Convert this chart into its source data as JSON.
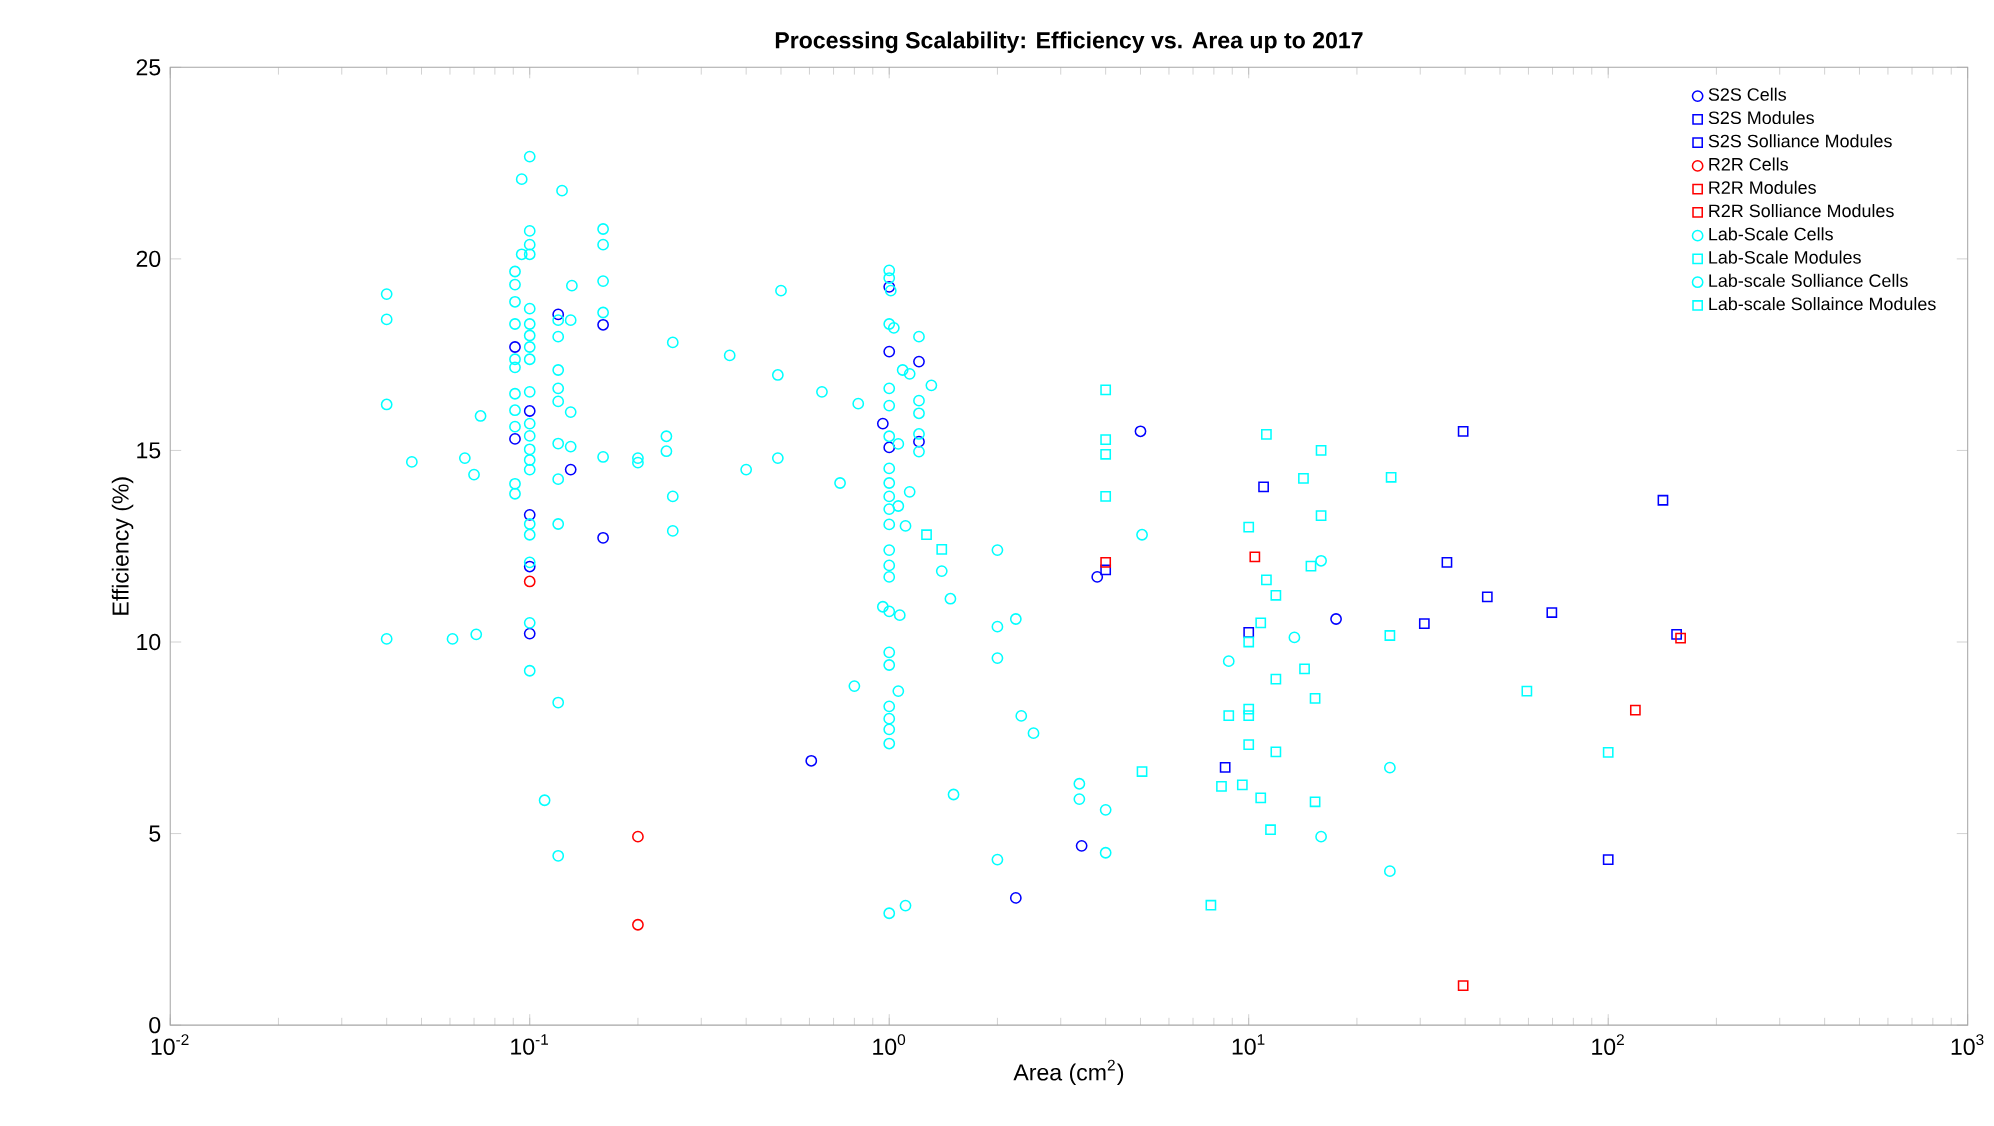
{
  "chart_data": {
    "type": "scatter",
    "title": "Processing Scalability: Efficiency vs. Area up to 2017",
    "xlabel": "Area (cm$^{2}$)",
    "ylabel": "Efficiency (%)",
    "log": "x",
    "grid": false,
    "legend": "top right",
    "xlim": [
      0.01,
      1000
    ],
    "xticks": [
      {
        "value": 0.01,
        "label": "10$^{-2}$"
      },
      {
        "value": 0.1,
        "label": "10$^{-1}$"
      },
      {
        "value": 1,
        "label": "10$^{0}$"
      },
      {
        "value": 10,
        "label": "10$^{1}$"
      },
      {
        "value": 100,
        "label": "10$^{2}$"
      },
      {
        "value": 1000,
        "label": "10$^{3}$"
      }
    ],
    "ylim": [
      0,
      25
    ],
    "yticks": [
      0,
      5,
      10,
      15,
      20,
      25
    ],
    "series": [
      {
        "name": "S2S Cells",
        "color": "#0000ff",
        "marker": "circle",
        "x": [
          0.12,
          0.16,
          0.091,
          0.1,
          0.091,
          0.13,
          0.16,
          0.1,
          0.1,
          0.1,
          1,
          1,
          1.21,
          0.96,
          1,
          1.21,
          0.607,
          5.0,
          3.43,
          2.25,
          3.79,
          17.5
        ],
        "values": [
          18.55,
          18.28,
          17.7,
          16.03,
          15.3,
          14.5,
          12.72,
          13.32,
          11.97,
          10.22,
          19.27,
          17.58,
          17.32,
          15.7,
          15.08,
          15.23,
          6.9,
          15.5,
          4.68,
          3.32,
          11.7,
          10.6
        ]
      },
      {
        "name": "S2S Modules",
        "color": "#0000ff",
        "marker": "square",
        "x": [
          4.0,
          11.0,
          39.5,
          35.6,
          46.1,
          30.8,
          69.7,
          10,
          8.6,
          100
        ],
        "values": [
          11.88,
          14.05,
          15.5,
          12.08,
          11.18,
          10.48,
          10.77,
          10.25,
          6.73,
          4.32
        ]
      },
      {
        "name": "S2S Solliance Modules",
        "color": "#0000ff",
        "marker": "square",
        "x": [
          142,
          155
        ],
        "values": [
          13.7,
          10.2
        ]
      },
      {
        "name": "R2R Cells",
        "color": "#ff0000",
        "marker": "circle",
        "x": [
          0.1,
          0.2,
          0.2
        ],
        "values": [
          11.58,
          4.92,
          2.62
        ]
      },
      {
        "name": "R2R Modules",
        "color": "#ff0000",
        "marker": "square",
        "x": [
          39.5
        ],
        "values": [
          1.03
        ]
      },
      {
        "name": "R2R Solliance Modules",
        "color": "#ff0000",
        "marker": "square",
        "x": [
          4.0,
          10.4,
          159,
          119
        ],
        "values": [
          12.08,
          12.22,
          10.1,
          8.22
        ]
      },
      {
        "name": "Lab-Scale Cells",
        "color": "#00ffff",
        "marker": "circle",
        "x": [
          0.1,
          0.095,
          0.123,
          0.1,
          0.1,
          0.1,
          0.095,
          0.16,
          0.16,
          0.16,
          0.091,
          0.091,
          0.1,
          0.12,
          0.13,
          0.1,
          0.16,
          0.1,
          0.12,
          0.1,
          0.1,
          0.25,
          0.04,
          0.04,
          0.04,
          0.12,
          0.12,
          0.12,
          0.13,
          0.091,
          0.091,
          0.1,
          0.1,
          0.1,
          0.091,
          0.073,
          0.047,
          0.066,
          0.07,
          0.1,
          0.1,
          0.1,
          0.12,
          0.13,
          0.091,
          0.091,
          0.12,
          0.16,
          0.2,
          0.2,
          0.24,
          0.24,
          0.25,
          0.25,
          0.1,
          0.1,
          0.12,
          0.1,
          0.04,
          0.061,
          0.071,
          0.1,
          0.1,
          0.12,
          0.11,
          0.12,
          1,
          1,
          1.01,
          0.5,
          1,
          1.03,
          1.21,
          0.36,
          0.49,
          1.09,
          1.14,
          0.65,
          1.31,
          0.82,
          1,
          1,
          1.21,
          1.21,
          1,
          1.06,
          1.21,
          1.21,
          0.49,
          0.4,
          0.73,
          1,
          1,
          1,
          1,
          1.14,
          1.06,
          1,
          1.11,
          1,
          1,
          1,
          2.0,
          1.4,
          1.48,
          0.96,
          1,
          1.07,
          2.0,
          2.25,
          2.0,
          1,
          1,
          0.8,
          1.06,
          1,
          1,
          1,
          1,
          2.33,
          2.52,
          1.51,
          3.38,
          3.38,
          4.0,
          4.0,
          2.0,
          1,
          1.11,
          5.05,
          15.9,
          13.4,
          8.8,
          24.7,
          15.9,
          24.7
        ],
        "values": [
          22.67,
          22.08,
          21.78,
          20.73,
          20.37,
          20.12,
          20.12,
          20.78,
          20.37,
          19.42,
          19.67,
          18.88,
          18.7,
          18.4,
          18.4,
          18.3,
          18.6,
          18.0,
          17.97,
          17.7,
          17.38,
          17.82,
          19.08,
          18.42,
          16.2,
          17.1,
          16.62,
          16.28,
          16.0,
          16.48,
          16.05,
          16.53,
          15.7,
          15.38,
          15.62,
          15.9,
          14.7,
          14.8,
          14.37,
          15.03,
          14.75,
          14.5,
          15.18,
          15.1,
          14.13,
          13.87,
          14.25,
          14.83,
          14.8,
          14.68,
          15.37,
          14.98,
          13.8,
          12.9,
          13.08,
          12.8,
          13.08,
          12.08,
          10.08,
          10.08,
          10.2,
          10.5,
          9.25,
          8.42,
          5.87,
          4.42,
          19.7,
          19.5,
          19.17,
          19.17,
          18.3,
          18.2,
          17.97,
          17.48,
          16.97,
          17.1,
          17.0,
          16.53,
          16.7,
          16.22,
          16.62,
          16.17,
          16.3,
          15.97,
          15.37,
          15.17,
          15.43,
          14.97,
          14.8,
          14.5,
          14.15,
          14.53,
          14.15,
          13.8,
          13.47,
          13.92,
          13.55,
          13.07,
          13.03,
          12.4,
          12.0,
          11.7,
          12.4,
          11.85,
          11.13,
          10.92,
          10.8,
          10.7,
          10.4,
          10.6,
          9.58,
          9.73,
          9.4,
          8.85,
          8.72,
          8.32,
          8.0,
          7.72,
          7.35,
          8.07,
          7.62,
          6.02,
          6.3,
          5.9,
          5.62,
          4.5,
          4.32,
          2.92,
          3.12,
          12.8,
          12.12,
          10.12,
          9.5,
          6.72,
          4.92,
          4.02
        ]
      },
      {
        "name": "Lab-Scale Modules",
        "color": "#00ffff",
        "marker": "square",
        "x": [
          1.27,
          1.4,
          4.0,
          4.0,
          5.05,
          11.2,
          14.2,
          24.9,
          10,
          14.9,
          11.2,
          11.9,
          10.8,
          10,
          24.7,
          14.3,
          11.9,
          15.3,
          8.8,
          10,
          10,
          10,
          11.9,
          8.4,
          9.6,
          10.8,
          15.3,
          11.5,
          7.85,
          59.4,
          100
        ],
        "values": [
          12.8,
          12.42,
          15.28,
          14.9,
          6.62,
          15.42,
          14.27,
          14.3,
          13.0,
          11.98,
          11.62,
          11.22,
          10.5,
          10.0,
          10.17,
          9.3,
          9.03,
          8.53,
          8.08,
          8.25,
          8.08,
          7.32,
          7.13,
          6.23,
          6.27,
          5.93,
          5.83,
          5.1,
          3.13,
          8.72,
          7.12
        ]
      },
      {
        "name": "Lab-scale Solliance Cells",
        "color": "#00ffff",
        "marker": "circle",
        "x": [
          0.091,
          0.131,
          0.091,
          0.091,
          0.091
        ],
        "values": [
          19.33,
          19.3,
          18.3,
          17.38,
          17.17
        ]
      },
      {
        "name": "Lab-scale Sollaince Modules",
        "color": "#00ffff",
        "marker": "square",
        "x": [
          4.0,
          4.0,
          15.9,
          15.9
        ],
        "values": [
          16.58,
          13.8,
          15.0,
          13.3
        ]
      }
    ]
  }
}
